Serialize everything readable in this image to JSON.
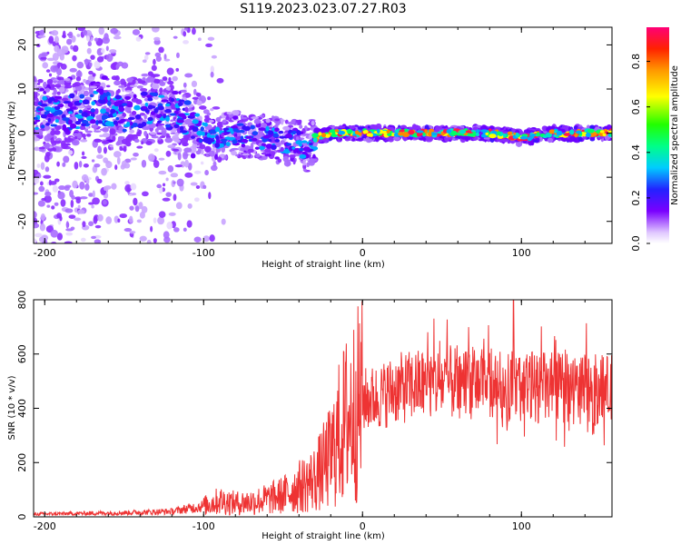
{
  "figure": {
    "title": "S119.2023.023.07.27.R03"
  },
  "chart_data": [
    {
      "type": "heatmap",
      "xlabel": "Height of straight line (km)",
      "ylabel": "Frequency (Hz)",
      "xlim": [
        -207,
        157
      ],
      "ylim": [
        -25,
        24
      ],
      "xticks": [
        -200,
        -100,
        0,
        100
      ],
      "yticks": [
        -20,
        -10,
        0,
        10,
        20
      ],
      "ridge": [
        [
          -200,
          4
        ],
        [
          -175,
          5
        ],
        [
          -165,
          6
        ],
        [
          -150,
          4
        ],
        [
          -140,
          5
        ],
        [
          -130,
          6
        ],
        [
          -120,
          4
        ],
        [
          -110,
          3
        ],
        [
          -100,
          0
        ],
        [
          -90,
          -1
        ],
        [
          -80,
          0
        ],
        [
          -70,
          -1
        ],
        [
          -60,
          -1
        ],
        [
          -50,
          -2
        ],
        [
          -40,
          -2
        ],
        [
          -35,
          -4
        ],
        [
          -30,
          -1
        ],
        [
          -20,
          0
        ],
        [
          -10,
          0
        ],
        [
          0,
          0
        ],
        [
          20,
          0
        ],
        [
          40,
          0
        ],
        [
          60,
          0
        ],
        [
          80,
          0
        ],
        [
          100,
          -1
        ],
        [
          120,
          0
        ],
        [
          140,
          0
        ],
        [
          157,
          0
        ]
      ],
      "colorbar": {
        "label": "Normalized spectral amplitude",
        "range": [
          0,
          0.95
        ],
        "ticks": [
          0.0,
          0.2,
          0.4,
          0.6,
          0.8
        ]
      }
    },
    {
      "type": "line",
      "xlabel": "Height of straight line (km)",
      "ylabel": "SNR (10 * v/v)",
      "xlim": [
        -207,
        157
      ],
      "ylim": [
        0,
        800
      ],
      "xticks": [
        -200,
        -100,
        0,
        100
      ],
      "yticks": [
        0,
        200,
        400,
        600,
        800
      ],
      "line_color": "#ee3333",
      "envelope": [
        [
          -207,
          10
        ],
        [
          -150,
          15
        ],
        [
          -120,
          20
        ],
        [
          -100,
          40
        ],
        [
          -90,
          60
        ],
        [
          -80,
          50
        ],
        [
          -70,
          55
        ],
        [
          -60,
          65
        ],
        [
          -50,
          80
        ],
        [
          -40,
          110
        ],
        [
          -30,
          140
        ],
        [
          -20,
          220
        ],
        [
          -15,
          300
        ],
        [
          -10,
          360
        ],
        [
          -5,
          400
        ],
        [
          0,
          430
        ],
        [
          10,
          440
        ],
        [
          20,
          470
        ],
        [
          40,
          490
        ],
        [
          60,
          495
        ],
        [
          80,
          490
        ],
        [
          100,
          480
        ],
        [
          120,
          475
        ],
        [
          140,
          470
        ],
        [
          157,
          470
        ]
      ],
      "peak": [
        95,
        800
      ]
    }
  ],
  "colors": {
    "background": "#ffffff",
    "axis": "#000000",
    "snr_line": "#ee3333"
  }
}
